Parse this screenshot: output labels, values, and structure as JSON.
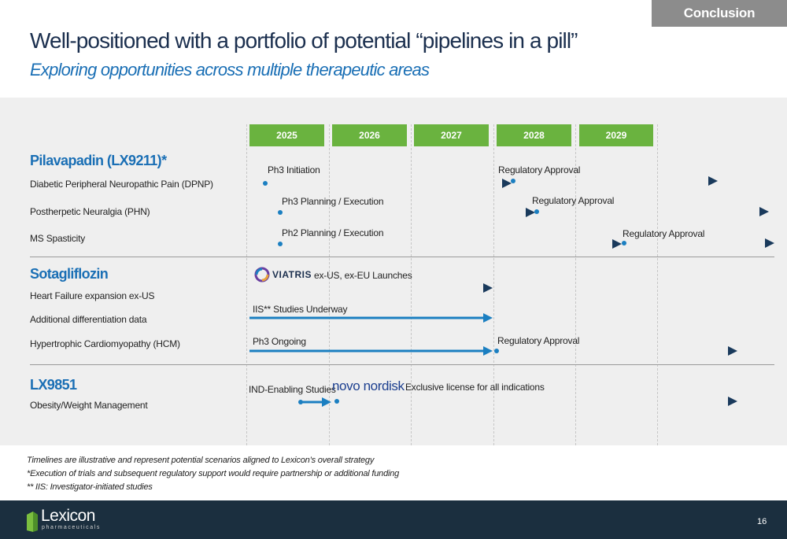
{
  "header": {
    "section_tag": "Conclusion",
    "title": "Well-positioned with a portfolio of potential “pipelines in a pill”",
    "subtitle": "Exploring opportunities across multiple therapeutic areas"
  },
  "timeline": {
    "years": [
      "2025",
      "2026",
      "2027",
      "2028",
      "2029"
    ],
    "year_color": "#6ab33f",
    "arrow_colors": {
      "light": "#1b7fc1",
      "dark": "#1a3a5c"
    }
  },
  "groups": [
    {
      "name": "Pilavapadin (LX9211)*",
      "rows": [
        {
          "label": "Diabetic Peripheral Neuropathic Pain (DPNP)",
          "phases": [
            "Ph3 Initiation",
            "Regulatory Approval"
          ]
        },
        {
          "label": "Postherpetic Neuralgia (PHN)",
          "phases": [
            "Ph3 Planning / Execution",
            "Regulatory Approval"
          ]
        },
        {
          "label": "MS Spasticity",
          "phases": [
            "Ph2 Planning / Execution",
            "Regulatory Approval"
          ]
        }
      ]
    },
    {
      "name": "Sotagliflozin",
      "partner_logo": "VIATRIS",
      "rows": [
        {
          "label": "Heart Failure expansion ex-US",
          "phases": [
            "ex-US, ex-EU Launches"
          ]
        },
        {
          "label": "Additional differentiation data",
          "phases": [
            "IIS** Studies Underway"
          ]
        },
        {
          "label": "Hypertrophic Cardiomyopathy (HCM)",
          "phases": [
            "Ph3 Ongoing",
            "Regulatory Approval"
          ]
        }
      ]
    },
    {
      "name": "LX9851",
      "partner_logo": "novo nordisk",
      "rows": [
        {
          "label": "Obesity/Weight Management",
          "phases": [
            "IND-Enabling Studies",
            "Exclusive license for all indications"
          ]
        }
      ]
    }
  ],
  "footnotes": [
    "Timelines are illustrative and represent potential scenarios aligned to Lexicon’s overall strategy",
    "*Execution of trials and subsequent regulatory support would require partnership or additional funding",
    "** IIS: Investigator-initiated studies"
  ],
  "footer": {
    "logo_name": "Lexicon",
    "logo_sub": "pharmaceuticals",
    "page_number": "16"
  }
}
